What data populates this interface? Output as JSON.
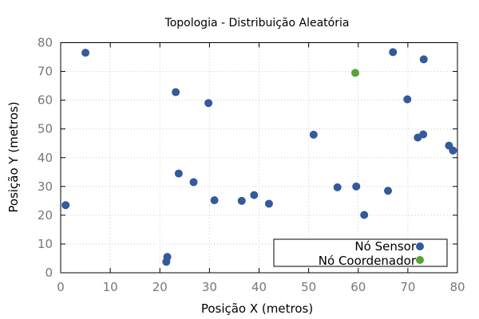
{
  "chart_data": {
    "type": "scatter",
    "title": "Topologia - Distribuição Aleatória",
    "xlabel": "Posição X (metros)",
    "ylabel": "Posição Y (metros)",
    "xlim": [
      0,
      80
    ],
    "ylim": [
      0,
      80
    ],
    "xticks": [
      "0",
      "10",
      "20",
      "30",
      "40",
      "50",
      "60",
      "70",
      "80"
    ],
    "yticks": [
      "0",
      "10",
      "20",
      "30",
      "40",
      "50",
      "60",
      "70",
      "80"
    ],
    "grid": true,
    "legend_position": "bottom-right",
    "series": [
      {
        "name": "Nó Sensor",
        "color": "#335a99",
        "points": [
          [
            1,
            23.5
          ],
          [
            5,
            76.5
          ],
          [
            21.3,
            3.8
          ],
          [
            21.5,
            5.5
          ],
          [
            23.2,
            62.8
          ],
          [
            23.8,
            34.5
          ],
          [
            26.8,
            31.5
          ],
          [
            29.8,
            59
          ],
          [
            31,
            25.2
          ],
          [
            36.5,
            25
          ],
          [
            39,
            27
          ],
          [
            42,
            24
          ],
          [
            51,
            48
          ],
          [
            55.8,
            29.7
          ],
          [
            59.6,
            30
          ],
          [
            61.2,
            20.1
          ],
          [
            66,
            28.5
          ],
          [
            67,
            76.7
          ],
          [
            69.9,
            60.3
          ],
          [
            72,
            47
          ],
          [
            73.1,
            48.1
          ],
          [
            73.2,
            74.2
          ],
          [
            78.3,
            44.2
          ],
          [
            79.1,
            42.5
          ]
        ]
      },
      {
        "name": "Nó Coordenador",
        "color": "#58a23a",
        "points": [
          [
            59.4,
            69.5
          ]
        ]
      }
    ]
  }
}
